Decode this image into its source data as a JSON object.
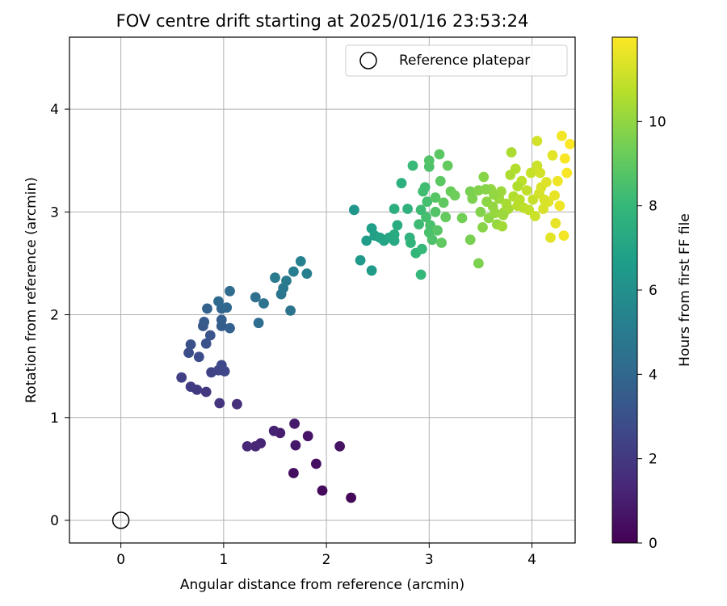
{
  "chart_data": {
    "type": "scatter",
    "title": "FOV centre drift starting at 2025/01/16 23:53:24",
    "xlabel": "Angular distance from reference (arcmin)",
    "ylabel": "Rotation from reference (arcmin)",
    "xlim": [
      -0.5,
      4.42
    ],
    "ylim": [
      -0.22,
      4.7
    ],
    "xticks": [
      "0",
      "1",
      "2",
      "3",
      "4"
    ],
    "yticks": [
      "0",
      "1",
      "2",
      "3",
      "4"
    ],
    "grid": true,
    "legend": {
      "position": "top-right",
      "label": "Reference platepar"
    },
    "reference": {
      "x": 0,
      "y": 0
    },
    "colorbar": {
      "label": "Hours from first FF file",
      "colormap": "viridis",
      "range": [
        0,
        12
      ],
      "ticks": [
        "0",
        "2",
        "4",
        "6",
        "8",
        "10"
      ]
    },
    "points": [
      {
        "x": 2.24,
        "y": 0.22,
        "h": 0.2
      },
      {
        "x": 1.96,
        "y": 0.29,
        "h": 0.3
      },
      {
        "x": 1.68,
        "y": 0.46,
        "h": 0.4
      },
      {
        "x": 1.9,
        "y": 0.55,
        "h": 0.5
      },
      {
        "x": 2.13,
        "y": 0.72,
        "h": 0.6
      },
      {
        "x": 1.82,
        "y": 0.82,
        "h": 0.7
      },
      {
        "x": 1.7,
        "y": 0.73,
        "h": 0.8
      },
      {
        "x": 1.69,
        "y": 0.94,
        "h": 0.9
      },
      {
        "x": 1.55,
        "y": 0.85,
        "h": 1.0
      },
      {
        "x": 1.49,
        "y": 0.87,
        "h": 1.1
      },
      {
        "x": 1.36,
        "y": 0.75,
        "h": 1.2
      },
      {
        "x": 1.31,
        "y": 0.72,
        "h": 1.3
      },
      {
        "x": 1.23,
        "y": 0.72,
        "h": 1.4
      },
      {
        "x": 1.13,
        "y": 1.13,
        "h": 1.6
      },
      {
        "x": 0.96,
        "y": 1.14,
        "h": 1.8
      },
      {
        "x": 0.83,
        "y": 1.25,
        "h": 2.0
      },
      {
        "x": 0.74,
        "y": 1.27,
        "h": 2.1
      },
      {
        "x": 0.68,
        "y": 1.3,
        "h": 2.2
      },
      {
        "x": 0.59,
        "y": 1.39,
        "h": 2.3
      },
      {
        "x": 0.88,
        "y": 1.44,
        "h": 2.4
      },
      {
        "x": 0.95,
        "y": 1.46,
        "h": 2.5
      },
      {
        "x": 1.01,
        "y": 1.45,
        "h": 2.6
      },
      {
        "x": 0.98,
        "y": 1.51,
        "h": 2.7
      },
      {
        "x": 0.76,
        "y": 1.59,
        "h": 2.8
      },
      {
        "x": 0.66,
        "y": 1.63,
        "h": 2.9
      },
      {
        "x": 0.68,
        "y": 1.71,
        "h": 3.0
      },
      {
        "x": 0.83,
        "y": 1.72,
        "h": 3.1
      },
      {
        "x": 0.87,
        "y": 1.8,
        "h": 3.2
      },
      {
        "x": 0.8,
        "y": 1.89,
        "h": 3.3
      },
      {
        "x": 0.81,
        "y": 1.93,
        "h": 3.4
      },
      {
        "x": 0.98,
        "y": 1.89,
        "h": 3.5
      },
      {
        "x": 0.98,
        "y": 1.95,
        "h": 3.6
      },
      {
        "x": 1.06,
        "y": 1.87,
        "h": 3.7
      },
      {
        "x": 0.84,
        "y": 2.06,
        "h": 3.8
      },
      {
        "x": 0.98,
        "y": 2.06,
        "h": 3.9
      },
      {
        "x": 1.03,
        "y": 2.07,
        "h": 4.0
      },
      {
        "x": 0.95,
        "y": 2.13,
        "h": 4.1
      },
      {
        "x": 1.06,
        "y": 2.23,
        "h": 4.2
      },
      {
        "x": 1.34,
        "y": 1.92,
        "h": 4.3
      },
      {
        "x": 1.31,
        "y": 2.17,
        "h": 4.4
      },
      {
        "x": 1.39,
        "y": 2.11,
        "h": 4.5
      },
      {
        "x": 1.65,
        "y": 2.04,
        "h": 4.6
      },
      {
        "x": 1.56,
        "y": 2.2,
        "h": 4.7
      },
      {
        "x": 1.58,
        "y": 2.26,
        "h": 4.8
      },
      {
        "x": 1.61,
        "y": 2.33,
        "h": 4.9
      },
      {
        "x": 1.5,
        "y": 2.36,
        "h": 5.0
      },
      {
        "x": 1.68,
        "y": 2.42,
        "h": 5.1
      },
      {
        "x": 1.81,
        "y": 2.4,
        "h": 5.2
      },
      {
        "x": 1.75,
        "y": 2.52,
        "h": 5.3
      },
      {
        "x": 2.27,
        "y": 3.02,
        "h": 6.3
      },
      {
        "x": 2.33,
        "y": 2.53,
        "h": 6.4
      },
      {
        "x": 2.44,
        "y": 2.43,
        "h": 6.5
      },
      {
        "x": 2.39,
        "y": 2.72,
        "h": 6.6
      },
      {
        "x": 2.44,
        "y": 2.84,
        "h": 6.7
      },
      {
        "x": 2.47,
        "y": 2.77,
        "h": 6.8
      },
      {
        "x": 2.52,
        "y": 2.75,
        "h": 6.9
      },
      {
        "x": 2.56,
        "y": 2.72,
        "h": 7.0
      },
      {
        "x": 2.61,
        "y": 2.75,
        "h": 7.1
      },
      {
        "x": 2.66,
        "y": 2.72,
        "h": 7.2
      },
      {
        "x": 2.66,
        "y": 2.78,
        "h": 7.3
      },
      {
        "x": 2.69,
        "y": 2.87,
        "h": 7.4
      },
      {
        "x": 2.66,
        "y": 3.03,
        "h": 7.5
      },
      {
        "x": 2.73,
        "y": 3.28,
        "h": 7.6
      },
      {
        "x": 2.79,
        "y": 3.03,
        "h": 7.7
      },
      {
        "x": 2.81,
        "y": 2.75,
        "h": 7.7
      },
      {
        "x": 2.82,
        "y": 2.7,
        "h": 7.8
      },
      {
        "x": 2.87,
        "y": 2.6,
        "h": 7.9
      },
      {
        "x": 2.92,
        "y": 2.39,
        "h": 8.0
      },
      {
        "x": 2.93,
        "y": 2.64,
        "h": 8.0
      },
      {
        "x": 2.84,
        "y": 3.45,
        "h": 8.1
      },
      {
        "x": 2.9,
        "y": 2.88,
        "h": 8.2
      },
      {
        "x": 2.92,
        "y": 3.02,
        "h": 8.2
      },
      {
        "x": 2.96,
        "y": 3.24,
        "h": 8.3
      },
      {
        "x": 2.94,
        "y": 3.2,
        "h": 8.3
      },
      {
        "x": 2.98,
        "y": 3.1,
        "h": 8.4
      },
      {
        "x": 2.97,
        "y": 2.95,
        "h": 8.4
      },
      {
        "x": 3.0,
        "y": 2.8,
        "h": 8.5
      },
      {
        "x": 3.01,
        "y": 2.87,
        "h": 8.5
      },
      {
        "x": 3.03,
        "y": 2.73,
        "h": 8.6
      },
      {
        "x": 3.0,
        "y": 3.44,
        "h": 8.6
      },
      {
        "x": 3.0,
        "y": 3.5,
        "h": 8.7
      },
      {
        "x": 3.06,
        "y": 3.0,
        "h": 8.7
      },
      {
        "x": 3.06,
        "y": 3.14,
        "h": 8.8
      },
      {
        "x": 3.08,
        "y": 2.82,
        "h": 8.8
      },
      {
        "x": 3.1,
        "y": 3.56,
        "h": 8.9
      },
      {
        "x": 3.11,
        "y": 3.3,
        "h": 8.9
      },
      {
        "x": 3.12,
        "y": 2.7,
        "h": 9.0
      },
      {
        "x": 3.14,
        "y": 3.09,
        "h": 9.0
      },
      {
        "x": 3.16,
        "y": 2.95,
        "h": 9.1
      },
      {
        "x": 3.18,
        "y": 3.45,
        "h": 9.1
      },
      {
        "x": 3.21,
        "y": 3.2,
        "h": 9.2
      },
      {
        "x": 3.25,
        "y": 3.16,
        "h": 9.3
      },
      {
        "x": 3.32,
        "y": 2.94,
        "h": 9.4
      },
      {
        "x": 3.4,
        "y": 2.73,
        "h": 9.5
      },
      {
        "x": 3.4,
        "y": 3.2,
        "h": 9.5
      },
      {
        "x": 3.42,
        "y": 3.13,
        "h": 9.6
      },
      {
        "x": 3.48,
        "y": 2.5,
        "h": 9.6
      },
      {
        "x": 3.48,
        "y": 3.21,
        "h": 9.7
      },
      {
        "x": 3.5,
        "y": 3.0,
        "h": 9.7
      },
      {
        "x": 3.52,
        "y": 2.85,
        "h": 9.8
      },
      {
        "x": 3.53,
        "y": 3.34,
        "h": 9.8
      },
      {
        "x": 3.56,
        "y": 3.1,
        "h": 9.9
      },
      {
        "x": 3.58,
        "y": 2.94,
        "h": 9.9
      },
      {
        "x": 3.6,
        "y": 3.22,
        "h": 10.0
      },
      {
        "x": 3.62,
        "y": 3.05,
        "h": 10.0
      },
      {
        "x": 3.64,
        "y": 2.99,
        "h": 10.1
      },
      {
        "x": 3.66,
        "y": 2.88,
        "h": 10.1
      },
      {
        "x": 3.68,
        "y": 3.13,
        "h": 10.2
      },
      {
        "x": 3.7,
        "y": 3.2,
        "h": 10.2
      },
      {
        "x": 3.71,
        "y": 2.86,
        "h": 10.3
      },
      {
        "x": 3.73,
        "y": 3.0,
        "h": 10.3
      },
      {
        "x": 3.75,
        "y": 3.08,
        "h": 10.4
      },
      {
        "x": 3.77,
        "y": 3.03,
        "h": 10.4
      },
      {
        "x": 3.79,
        "y": 3.36,
        "h": 10.5
      },
      {
        "x": 3.8,
        "y": 3.58,
        "h": 10.5
      },
      {
        "x": 3.82,
        "y": 3.15,
        "h": 10.6
      },
      {
        "x": 3.84,
        "y": 3.42,
        "h": 10.6
      },
      {
        "x": 3.86,
        "y": 3.06,
        "h": 10.7
      },
      {
        "x": 3.88,
        "y": 3.12,
        "h": 10.7
      },
      {
        "x": 3.9,
        "y": 3.3,
        "h": 10.8
      },
      {
        "x": 3.92,
        "y": 3.04,
        "h": 10.8
      },
      {
        "x": 3.95,
        "y": 3.21,
        "h": 10.9
      },
      {
        "x": 3.97,
        "y": 3.02,
        "h": 10.9
      },
      {
        "x": 3.99,
        "y": 3.38,
        "h": 11.0
      },
      {
        "x": 4.01,
        "y": 3.12,
        "h": 11.0
      },
      {
        "x": 4.03,
        "y": 2.96,
        "h": 11.1
      },
      {
        "x": 4.05,
        "y": 3.45,
        "h": 11.1
      },
      {
        "x": 4.05,
        "y": 3.69,
        "h": 11.2
      },
      {
        "x": 4.07,
        "y": 3.18,
        "h": 11.2
      },
      {
        "x": 4.09,
        "y": 3.24,
        "h": 11.3
      },
      {
        "x": 4.11,
        "y": 3.03,
        "h": 11.3
      },
      {
        "x": 4.14,
        "y": 3.29,
        "h": 11.4
      },
      {
        "x": 4.16,
        "y": 3.1,
        "h": 11.4
      },
      {
        "x": 4.18,
        "y": 2.75,
        "h": 11.5
      },
      {
        "x": 4.2,
        "y": 3.55,
        "h": 11.5
      },
      {
        "x": 4.22,
        "y": 3.16,
        "h": 11.6
      },
      {
        "x": 4.23,
        "y": 2.89,
        "h": 11.6
      },
      {
        "x": 4.25,
        "y": 3.3,
        "h": 11.7
      },
      {
        "x": 4.27,
        "y": 3.06,
        "h": 11.7
      },
      {
        "x": 4.29,
        "y": 3.74,
        "h": 11.8
      },
      {
        "x": 4.31,
        "y": 2.77,
        "h": 11.8
      },
      {
        "x": 4.32,
        "y": 3.52,
        "h": 11.9
      },
      {
        "x": 4.34,
        "y": 3.38,
        "h": 11.9
      },
      {
        "x": 4.37,
        "y": 3.66,
        "h": 12.0
      },
      {
        "x": 3.72,
        "y": 2.97,
        "h": 10.2
      },
      {
        "x": 3.55,
        "y": 3.22,
        "h": 9.8
      },
      {
        "x": 3.86,
        "y": 3.25,
        "h": 10.6
      },
      {
        "x": 4.08,
        "y": 3.38,
        "h": 11.2
      },
      {
        "x": 3.63,
        "y": 3.17,
        "h": 10.0
      },
      {
        "x": 4.12,
        "y": 3.12,
        "h": 11.3
      }
    ]
  }
}
